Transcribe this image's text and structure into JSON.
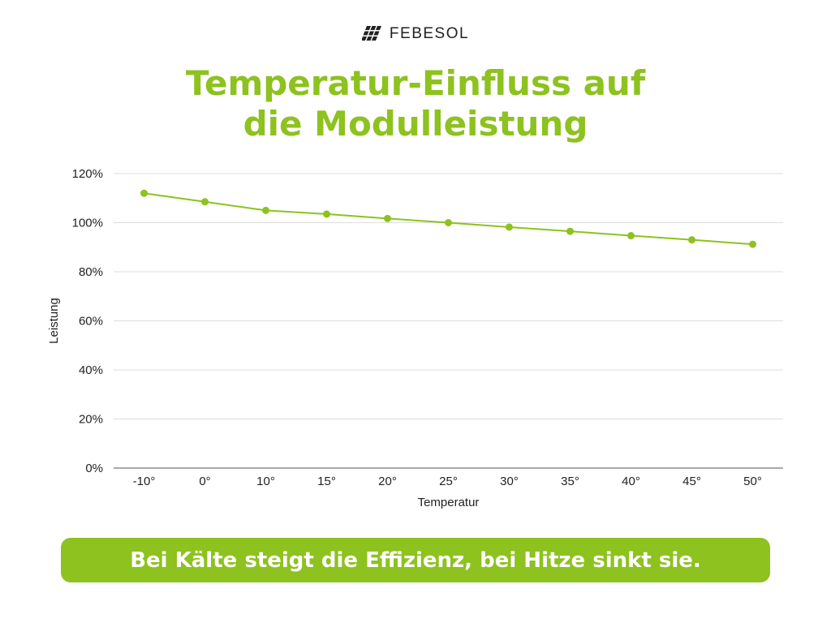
{
  "brand": {
    "name": "FEBESOL",
    "logo_icon": "solar-panel-icon"
  },
  "title": {
    "line1": "Temperatur-Einfluss auf",
    "line2": "die Modulleistung"
  },
  "colors": {
    "accent": "#8dc21f",
    "text": "#222222",
    "grid": "#dddddd",
    "axis": "#555555"
  },
  "chart_data": {
    "type": "line",
    "title": "Temperatur-Einfluss auf die Modulleistung",
    "xlabel": "Temperatur",
    "ylabel": "Leistung",
    "categories": [
      "-10°",
      "0°",
      "10°",
      "15°",
      "20°",
      "25°",
      "30°",
      "35°",
      "40°",
      "45°",
      "50°"
    ],
    "series": [
      {
        "values": [
          112,
          108.5,
          105,
          103.5,
          101.7,
          100,
          98.2,
          96.5,
          94.7,
          93,
          91.2
        ]
      }
    ],
    "ylim": [
      0,
      120
    ],
    "yticks": [
      0,
      20,
      40,
      60,
      80,
      100,
      120
    ],
    "ytick_labels": [
      "0%",
      "20%",
      "40%",
      "60%",
      "80%",
      "100%",
      "120%"
    ],
    "grid": true,
    "legend": "none"
  },
  "banner": {
    "text": "Bei Kälte steigt die Effizienz, bei Hitze sinkt sie."
  }
}
